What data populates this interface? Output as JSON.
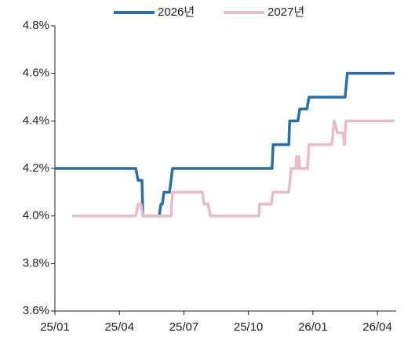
{
  "chart_data": {
    "type": "line",
    "legend": "top",
    "series": [
      {
        "name": "2026년",
        "color": "#2e6ca4",
        "x": [
          0,
          3.76,
          3.87,
          4.05,
          4.09,
          4.85,
          4.93,
          5.0,
          5.07,
          5.33,
          5.47,
          10.1,
          10.15,
          10.88,
          10.92,
          11.3,
          11.39,
          11.72,
          11.82,
          13.5,
          13.6,
          15.8
        ],
        "values": [
          4.2,
          4.2,
          4.15,
          4.15,
          4.0,
          4.0,
          4.05,
          4.05,
          4.1,
          4.1,
          4.2,
          4.2,
          4.3,
          4.3,
          4.4,
          4.4,
          4.45,
          4.45,
          4.5,
          4.5,
          4.6,
          4.6
        ]
      },
      {
        "name": "2027년",
        "color": "#e8bccb",
        "x": [
          0.8,
          3.76,
          3.87,
          4.0,
          4.09,
          5.4,
          5.47,
          6.86,
          6.93,
          7.12,
          7.23,
          9.49,
          9.52,
          10.07,
          10.15,
          10.88,
          10.99,
          11.2,
          11.24,
          11.3,
          11.35,
          11.4,
          11.5,
          11.75,
          11.82,
          12.88,
          12.99,
          13.14,
          13.39,
          13.47,
          13.54,
          15.8
        ],
        "values": [
          4.0,
          4.0,
          4.05,
          4.05,
          4.0,
          4.0,
          4.1,
          4.1,
          4.05,
          4.05,
          4.0,
          4.0,
          4.05,
          4.05,
          4.1,
          4.1,
          4.2,
          4.2,
          4.25,
          4.2,
          4.25,
          4.2,
          4.2,
          4.2,
          4.3,
          4.3,
          4.4,
          4.35,
          4.35,
          4.3,
          4.4,
          4.4
        ]
      }
    ],
    "xlim": [
      0,
      15.8
    ],
    "xticks": [
      {
        "value": 0,
        "label": "25/01"
      },
      {
        "value": 3,
        "label": "25/04"
      },
      {
        "value": 6,
        "label": "25/07"
      },
      {
        "value": 9,
        "label": "25/10"
      },
      {
        "value": 12,
        "label": "26/01"
      },
      {
        "value": 15,
        "label": "26/04"
      }
    ],
    "ylim": [
      3.6,
      4.8
    ],
    "yticks": [
      {
        "value": 3.6,
        "label": "3.6%"
      },
      {
        "value": 3.8,
        "label": "3.8%"
      },
      {
        "value": 4.0,
        "label": "4.0%"
      },
      {
        "value": 4.2,
        "label": "4.2%"
      },
      {
        "value": 4.4,
        "label": "4.4%"
      },
      {
        "value": 4.6,
        "label": "4.6%"
      },
      {
        "value": 4.8,
        "label": "4.8%"
      }
    ],
    "grid": false
  }
}
